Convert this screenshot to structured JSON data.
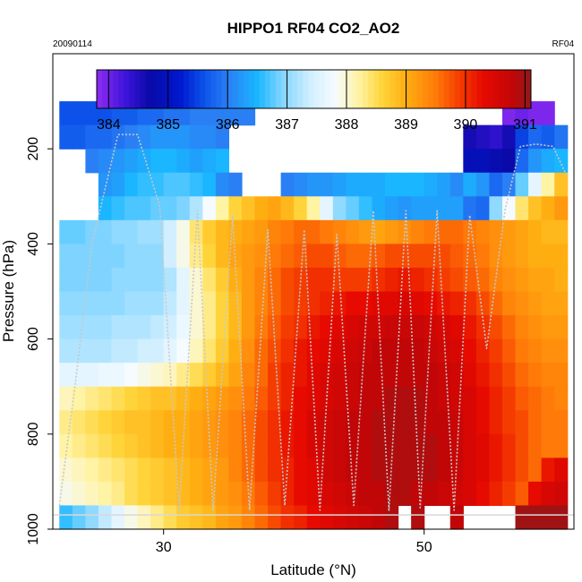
{
  "chart_data": {
    "type": "heatmap",
    "title": "HIPPO1 RF04 CO2_AO2",
    "date_label": "20090114",
    "flight_label": "RF04",
    "xlabel": "Latitude (°N)",
    "ylabel": "Pressure (hPa)",
    "xlim": [
      21.5,
      61.5
    ],
    "ylim": [
      1000,
      0
    ],
    "x_ticks": [
      30,
      50
    ],
    "y_ticks": [
      200,
      400,
      600,
      800,
      1000
    ],
    "colorbar": {
      "range": [
        383.8,
        391.1
      ],
      "ticks": [
        384,
        385,
        386,
        387,
        388,
        389,
        390,
        391
      ],
      "color_stops": [
        {
          "v": 383.8,
          "c": "#8e2cf2"
        },
        {
          "v": 384.3,
          "c": "#3a14d8"
        },
        {
          "v": 384.7,
          "c": "#0a0aa8"
        },
        {
          "v": 385.2,
          "c": "#0018cf"
        },
        {
          "v": 385.6,
          "c": "#0c52ea"
        },
        {
          "v": 386.0,
          "c": "#2a7ff5"
        },
        {
          "v": 386.5,
          "c": "#1ab6ff"
        },
        {
          "v": 386.9,
          "c": "#7fd4ff"
        },
        {
          "v": 387.4,
          "c": "#d2efff"
        },
        {
          "v": 387.8,
          "c": "#f5fbff"
        },
        {
          "v": 388.2,
          "c": "#fff3a4"
        },
        {
          "v": 388.6,
          "c": "#ffd43a"
        },
        {
          "v": 389.0,
          "c": "#ffae12"
        },
        {
          "v": 389.5,
          "c": "#ff7a08"
        },
        {
          "v": 389.9,
          "c": "#f53c00"
        },
        {
          "v": 390.3,
          "c": "#e60a00"
        },
        {
          "v": 390.8,
          "c": "#c10608"
        },
        {
          "v": 391.1,
          "c": "#8f1a1a"
        }
      ]
    },
    "x_centers": [
      22.5,
      23.5,
      24.5,
      25.5,
      26.5,
      27.5,
      28.5,
      29.5,
      30.5,
      31.5,
      32.5,
      33.5,
      34.5,
      35.5,
      36.5,
      37.5,
      38.5,
      39.5,
      40.5,
      41.5,
      42.5,
      43.5,
      44.5,
      45.5,
      46.5,
      47.5,
      48.5,
      49.5,
      50.5,
      51.5,
      52.5,
      53.5,
      54.5,
      55.5,
      56.5,
      57.5,
      58.5,
      59.5,
      60.5
    ],
    "row_bands": [
      {
        "top": 100,
        "bottom": 150
      },
      {
        "top": 150,
        "bottom": 200
      },
      {
        "top": 200,
        "bottom": 250
      },
      {
        "top": 250,
        "bottom": 300
      },
      {
        "top": 300,
        "bottom": 350
      },
      {
        "top": 350,
        "bottom": 400
      },
      {
        "top": 400,
        "bottom": 450
      },
      {
        "top": 450,
        "bottom": 500
      },
      {
        "top": 500,
        "bottom": 550
      },
      {
        "top": 550,
        "bottom": 600
      },
      {
        "top": 600,
        "bottom": 650
      },
      {
        "top": 650,
        "bottom": 700
      },
      {
        "top": 700,
        "bottom": 750
      },
      {
        "top": 750,
        "bottom": 800
      },
      {
        "top": 800,
        "bottom": 850
      },
      {
        "top": 850,
        "bottom": 900
      },
      {
        "top": 900,
        "bottom": 950
      },
      {
        "top": 950,
        "bottom": 1000
      }
    ],
    "values": [
      [
        385.6,
        385.6,
        385.6,
        385.6,
        385.7,
        385.7,
        385.8,
        385.8,
        385.9,
        385.9,
        386.0,
        386.0,
        386.0,
        386.0,
        386.0,
        null,
        null,
        null,
        null,
        null,
        null,
        null,
        null,
        null,
        null,
        null,
        null,
        null,
        null,
        null,
        null,
        null,
        null,
        null,
        383.9,
        384.0,
        383.9,
        383.9,
        null
      ],
      [
        385.7,
        385.7,
        385.8,
        385.8,
        385.9,
        386.0,
        386.1,
        386.2,
        386.2,
        386.2,
        386.1,
        386.1,
        386.0,
        null,
        null,
        null,
        null,
        null,
        null,
        null,
        null,
        null,
        null,
        null,
        null,
        null,
        null,
        null,
        null,
        null,
        null,
        384.6,
        384.5,
        384.4,
        384.6,
        385.5,
        385.8,
        385.7,
        385.9
      ],
      [
        null,
        null,
        386.0,
        386.1,
        386.2,
        386.3,
        386.4,
        386.5,
        386.5,
        386.4,
        386.3,
        386.4,
        386.5,
        null,
        null,
        null,
        null,
        null,
        null,
        null,
        null,
        null,
        null,
        null,
        null,
        null,
        null,
        null,
        null,
        null,
        null,
        384.9,
        384.9,
        384.8,
        384.7,
        385.8,
        386.2,
        386.4,
        386.5
      ],
      [
        null,
        null,
        null,
        386.2,
        386.3,
        386.5,
        386.6,
        386.6,
        386.7,
        386.7,
        386.6,
        386.5,
        386.1,
        386.0,
        null,
        null,
        null,
        386.0,
        386.1,
        386.2,
        386.2,
        386.3,
        386.4,
        386.4,
        386.4,
        386.5,
        386.5,
        386.5,
        386.4,
        386.3,
        386.1,
        386.4,
        386.2,
        385.8,
        386.0,
        386.8,
        387.6,
        388.2,
        388.8
      ],
      [
        null,
        null,
        null,
        386.5,
        386.6,
        386.7,
        386.7,
        386.8,
        386.8,
        386.9,
        387.2,
        387.8,
        388.2,
        388.6,
        388.8,
        389.0,
        389.1,
        388.9,
        388.6,
        388.2,
        387.6,
        387.0,
        386.8,
        386.6,
        386.4,
        386.3,
        386.2,
        386.3,
        386.3,
        386.3,
        386.3,
        385.9,
        385.8,
        387.0,
        387.8,
        388.4,
        388.8,
        389.0,
        389.2
      ],
      [
        386.8,
        386.8,
        386.9,
        386.9,
        387.0,
        387.0,
        387.1,
        387.1,
        387.4,
        387.9,
        388.4,
        388.7,
        388.9,
        389.0,
        389.1,
        389.2,
        389.4,
        389.5,
        389.6,
        389.6,
        389.5,
        389.4,
        389.3,
        389.2,
        389.1,
        389.2,
        389.3,
        389.4,
        389.5,
        389.6,
        389.6,
        389.5,
        389.4,
        389.3,
        389.2,
        389.1,
        389.0,
        388.9,
        388.9
      ],
      [
        386.9,
        386.9,
        386.9,
        386.9,
        386.9,
        387.0,
        387.0,
        387.0,
        387.4,
        387.9,
        388.3,
        388.6,
        388.9,
        389.1,
        389.2,
        389.3,
        389.5,
        389.6,
        389.7,
        389.8,
        389.8,
        389.7,
        389.6,
        389.6,
        389.7,
        389.8,
        389.8,
        389.8,
        389.8,
        389.8,
        389.7,
        389.6,
        389.5,
        389.3,
        389.2,
        389.1,
        389.0,
        389.0,
        389.0
      ],
      [
        386.9,
        386.9,
        386.9,
        386.9,
        387.0,
        387.0,
        387.0,
        387.0,
        387.2,
        387.6,
        388.0,
        388.4,
        388.7,
        389.0,
        389.2,
        389.4,
        389.6,
        389.8,
        389.9,
        390.0,
        390.0,
        389.9,
        389.9,
        389.9,
        390.0,
        390.1,
        390.2,
        390.1,
        390.0,
        389.9,
        389.8,
        389.7,
        389.6,
        389.4,
        389.3,
        389.2,
        389.1,
        389.1,
        389.0
      ],
      [
        387.0,
        387.0,
        387.0,
        387.0,
        387.0,
        387.1,
        387.1,
        387.1,
        387.3,
        387.6,
        388.0,
        388.3,
        388.6,
        388.9,
        389.2,
        389.4,
        389.6,
        389.8,
        389.9,
        390.0,
        390.1,
        390.2,
        390.3,
        390.3,
        390.4,
        390.4,
        390.5,
        390.4,
        390.3,
        390.2,
        390.1,
        390.0,
        389.8,
        389.6,
        389.4,
        389.3,
        389.2,
        389.1,
        389.1
      ],
      [
        387.1,
        387.1,
        387.1,
        387.1,
        387.2,
        387.2,
        387.2,
        387.3,
        387.4,
        387.7,
        388.0,
        388.3,
        388.6,
        388.9,
        389.2,
        389.5,
        389.7,
        389.9,
        390.0,
        390.2,
        390.3,
        390.4,
        390.5,
        390.6,
        390.6,
        390.7,
        390.7,
        390.7,
        390.6,
        390.5,
        390.4,
        390.2,
        390.0,
        389.8,
        389.6,
        389.4,
        389.3,
        389.2,
        389.2
      ],
      [
        387.2,
        387.2,
        387.2,
        387.2,
        387.3,
        387.3,
        387.4,
        387.4,
        387.6,
        387.8,
        388.1,
        388.4,
        388.7,
        389.0,
        389.3,
        389.6,
        389.8,
        390.0,
        390.2,
        390.3,
        390.4,
        390.5,
        390.6,
        390.7,
        390.8,
        390.8,
        390.8,
        390.8,
        390.7,
        390.6,
        390.5,
        390.3,
        390.1,
        389.9,
        389.7,
        389.5,
        389.4,
        389.3,
        389.3
      ],
      [
        387.6,
        387.6,
        387.6,
        387.7,
        387.7,
        387.8,
        387.9,
        388.0,
        388.1,
        388.3,
        388.5,
        388.7,
        388.9,
        389.1,
        389.4,
        389.6,
        389.9,
        390.1,
        390.2,
        390.4,
        390.5,
        390.6,
        390.7,
        390.8,
        390.8,
        390.8,
        390.8,
        390.8,
        390.8,
        390.7,
        390.6,
        390.4,
        390.2,
        390.0,
        389.8,
        389.6,
        389.5,
        389.4,
        389.4
      ],
      [
        388.1,
        388.2,
        388.3,
        388.4,
        388.5,
        388.6,
        388.7,
        388.8,
        388.8,
        388.9,
        389.0,
        389.1,
        389.2,
        389.3,
        389.5,
        389.7,
        389.9,
        390.1,
        390.3,
        390.4,
        390.5,
        390.6,
        390.7,
        390.8,
        390.8,
        390.9,
        390.9,
        390.9,
        390.8,
        390.7,
        390.6,
        390.5,
        390.3,
        390.1,
        389.9,
        389.7,
        389.6,
        389.5,
        389.4
      ],
      [
        388.3,
        388.4,
        388.5,
        388.6,
        388.7,
        388.8,
        388.8,
        388.9,
        389.0,
        389.0,
        389.1,
        389.2,
        389.3,
        389.4,
        389.6,
        389.8,
        390.0,
        390.2,
        390.3,
        390.5,
        390.6,
        390.7,
        390.8,
        390.8,
        390.9,
        390.9,
        390.9,
        390.9,
        390.8,
        390.8,
        390.7,
        390.5,
        390.3,
        390.1,
        389.9,
        389.8,
        389.6,
        389.5,
        389.5
      ],
      [
        388.2,
        388.3,
        388.4,
        388.5,
        388.6,
        388.7,
        388.8,
        388.9,
        389.0,
        389.0,
        389.1,
        389.2,
        389.3,
        389.4,
        389.6,
        389.8,
        390.0,
        390.2,
        390.3,
        390.5,
        390.6,
        390.7,
        390.8,
        390.8,
        390.9,
        390.9,
        390.9,
        390.9,
        390.9,
        390.8,
        390.7,
        390.5,
        390.4,
        390.2,
        390.0,
        389.8,
        389.6,
        389.5,
        389.5
      ],
      [
        388.0,
        388.1,
        388.2,
        388.3,
        388.4,
        388.5,
        388.6,
        388.7,
        388.8,
        388.9,
        389.0,
        389.1,
        389.2,
        389.4,
        389.6,
        389.8,
        390.0,
        390.1,
        390.3,
        390.4,
        390.6,
        390.7,
        390.8,
        390.8,
        390.9,
        390.9,
        390.9,
        390.9,
        390.9,
        390.8,
        390.7,
        390.5,
        390.4,
        390.2,
        390.0,
        389.8,
        389.6,
        390.2,
        390.4
      ],
      [
        387.9,
        388.0,
        388.1,
        388.2,
        388.3,
        388.5,
        388.6,
        388.7,
        388.8,
        388.9,
        389.0,
        389.1,
        389.2,
        389.3,
        389.5,
        389.7,
        389.9,
        390.1,
        390.3,
        390.4,
        390.5,
        390.6,
        390.7,
        390.8,
        390.8,
        390.9,
        390.9,
        390.8,
        390.8,
        390.7,
        390.6,
        390.5,
        390.3,
        390.1,
        389.9,
        389.7,
        390.3,
        390.5,
        390.6
      ],
      [
        386.6,
        386.8,
        387.0,
        387.3,
        387.6,
        387.9,
        388.1,
        388.3,
        388.5,
        388.7,
        388.8,
        388.9,
        389.1,
        389.2,
        389.4,
        389.6,
        389.8,
        390.0,
        390.1,
        390.3,
        390.4,
        390.5,
        390.6,
        390.7,
        390.8,
        390.9,
        null,
        390.9,
        null,
        null,
        390.8,
        null,
        null,
        null,
        null,
        391.0,
        391.0,
        391.0,
        391.0
      ]
    ],
    "series": [
      {
        "name": "ascent/descent lat",
        "values": [
          22.0,
          23.2,
          24.5,
          26.5,
          28.0,
          29.7,
          31.2,
          32.6,
          33.8,
          35.3,
          36.6,
          38.0,
          39.3,
          40.8,
          42.0,
          43.3,
          44.6,
          46.1,
          47.3,
          48.6,
          49.7,
          51.0,
          52.3,
          53.5,
          54.8,
          56.2,
          57.4,
          58.6,
          59.9,
          61.0
        ]
      },
      {
        "name": "ascent/descent pressure",
        "values": [
          950,
          700,
          400,
          170,
          170,
          320,
          960,
          330,
          960,
          340,
          960,
          370,
          950,
          370,
          960,
          380,
          950,
          330,
          960,
          330,
          955,
          330,
          960,
          340,
          620,
          330,
          195,
          190,
          195,
          260
        ]
      }
    ],
    "flight_track_lat": [
      22.0,
      23.2,
      24.5,
      26.5,
      28.0,
      29.7,
      31.2,
      32.6,
      33.8,
      35.3,
      36.6,
      38.0,
      39.3,
      40.8,
      42.0,
      43.3,
      44.6,
      46.1,
      47.3,
      48.6,
      49.7,
      51.0,
      52.3,
      53.5,
      54.8,
      56.2,
      57.4,
      58.6,
      59.9,
      61.0
    ],
    "flight_track_pressure": [
      950,
      700,
      400,
      170,
      170,
      320,
      960,
      330,
      960,
      340,
      960,
      370,
      950,
      370,
      960,
      380,
      950,
      330,
      960,
      330,
      955,
      330,
      960,
      340,
      620,
      330,
      195,
      190,
      195,
      260
    ]
  }
}
